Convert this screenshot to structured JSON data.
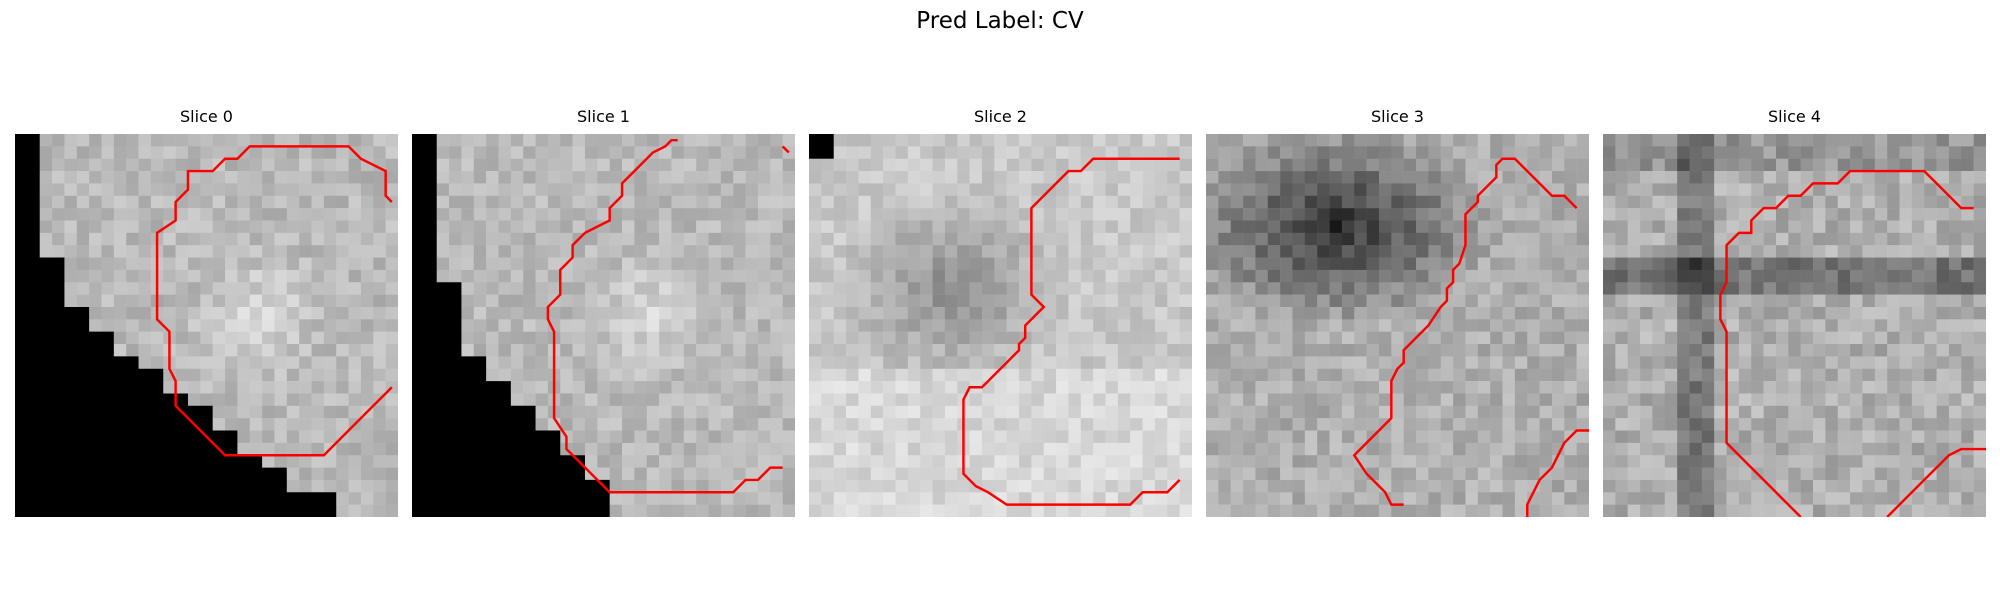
{
  "figure": {
    "title": "Pred Label: CV"
  },
  "panels": [
    {
      "title": "Slice 0",
      "mask": "bottom-left-triangle"
    },
    {
      "title": "Slice 1",
      "mask": "bottom-left-triangle"
    },
    {
      "title": "Slice 2",
      "mask": "top-left-corner"
    },
    {
      "title": "Slice 3",
      "mask": "dark-top-region"
    },
    {
      "title": "Slice 4",
      "mask": "dark-cross"
    }
  ],
  "colors": {
    "contour": "#ff0000",
    "mask": "#000000"
  }
}
